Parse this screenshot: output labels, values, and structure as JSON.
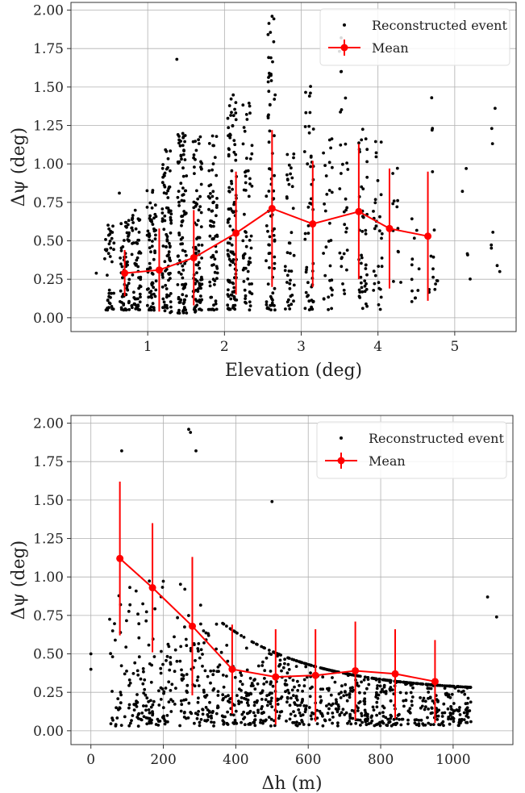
{
  "chart_data": [
    {
      "type": "scatter",
      "title": "",
      "xlabel": "Elevation (deg)",
      "ylabel": "Δψ (deg)",
      "xlim": [
        0.0,
        5.8
      ],
      "ylim": [
        -0.09,
        2.05
      ],
      "xticks": [
        1,
        2,
        3,
        4,
        5
      ],
      "yticks": [
        0.0,
        0.25,
        0.5,
        0.75,
        1.0,
        1.25,
        1.5,
        1.75,
        2.0
      ],
      "ytick_labels": [
        "0.00",
        "0.25",
        "0.50",
        "0.75",
        "1.00",
        "1.25",
        "1.50",
        "1.75",
        "2.00"
      ],
      "grid": true,
      "legend_position": "top-right",
      "colors": {
        "points": "#000000",
        "mean": "#ff0000"
      },
      "series": [
        {
          "name": "Reconstructed event",
          "kind": "scatter",
          "clusters": [
            {
              "x": 0.5,
              "y_min": 0.05,
              "y_max": 0.62,
              "n": 40
            },
            {
              "x": 0.7,
              "y_min": 0.05,
              "y_max": 0.65,
              "n": 60
            },
            {
              "x": 0.85,
              "y_min": 0.05,
              "y_max": 0.7,
              "n": 60
            },
            {
              "x": 1.05,
              "y_min": 0.03,
              "y_max": 0.85,
              "n": 70
            },
            {
              "x": 1.25,
              "y_min": 0.03,
              "y_max": 1.1,
              "n": 90
            },
            {
              "x": 1.45,
              "y_min": 0.03,
              "y_max": 1.2,
              "n": 100
            },
            {
              "x": 1.65,
              "y_min": 0.03,
              "y_max": 1.2,
              "n": 90
            },
            {
              "x": 1.85,
              "y_min": 0.05,
              "y_max": 1.2,
              "n": 70
            },
            {
              "x": 2.1,
              "y_min": 0.05,
              "y_max": 1.45,
              "n": 110
            },
            {
              "x": 2.3,
              "y_min": 0.05,
              "y_max": 1.45,
              "n": 60
            },
            {
              "x": 2.6,
              "y_min": 0.05,
              "y_max": 1.95,
              "n": 80
            },
            {
              "x": 2.85,
              "y_min": 0.05,
              "y_max": 1.2,
              "n": 40
            },
            {
              "x": 3.1,
              "y_min": 0.05,
              "y_max": 1.55,
              "n": 50
            },
            {
              "x": 3.35,
              "y_min": 0.05,
              "y_max": 1.3,
              "n": 30
            },
            {
              "x": 3.55,
              "y_min": 0.15,
              "y_max": 1.8,
              "n": 30
            },
            {
              "x": 3.8,
              "y_min": 0.05,
              "y_max": 1.3,
              "n": 45
            },
            {
              "x": 4.0,
              "y_min": 0.05,
              "y_max": 1.15,
              "n": 30
            },
            {
              "x": 4.25,
              "y_min": 0.2,
              "y_max": 1.0,
              "n": 12
            },
            {
              "x": 4.5,
              "y_min": 0.1,
              "y_max": 0.75,
              "n": 12
            },
            {
              "x": 4.72,
              "y_min": 0.12,
              "y_max": 1.45,
              "n": 14
            },
            {
              "x": 5.15,
              "y_min": 0.2,
              "y_max": 0.97,
              "n": 4
            },
            {
              "x": 5.47,
              "y_min": 0.3,
              "y_max": 1.43,
              "n": 6
            },
            {
              "x": 5.57,
              "y_min": 0.3,
              "y_max": 0.35,
              "n": 2
            }
          ],
          "extra_points": [
            [
              0.33,
              0.29
            ],
            [
              0.63,
              0.81
            ],
            [
              1.38,
              1.68
            ],
            [
              2.62,
              1.96
            ],
            [
              5.15,
              0.97
            ],
            [
              4.7,
              1.43
            ],
            [
              3.52,
              1.82
            ]
          ]
        },
        {
          "name": "Mean",
          "kind": "line-errorbar",
          "x": [
            0.7,
            1.15,
            1.6,
            2.15,
            2.62,
            3.15,
            3.75,
            4.15,
            4.65
          ],
          "y": [
            0.29,
            0.31,
            0.39,
            0.55,
            0.71,
            0.61,
            0.69,
            0.58,
            0.53
          ],
          "err": [
            0.15,
            0.27,
            0.31,
            0.4,
            0.51,
            0.41,
            0.44,
            0.39,
            0.42
          ]
        }
      ]
    },
    {
      "type": "scatter",
      "title": "",
      "xlabel": "Δh (m)",
      "ylabel": "Δψ (deg)",
      "xlim": [
        -55,
        1165
      ],
      "ylim": [
        -0.09,
        2.05
      ],
      "xticks": [
        0,
        200,
        400,
        600,
        800,
        1000
      ],
      "yticks": [
        0.0,
        0.25,
        0.5,
        0.75,
        1.0,
        1.25,
        1.5,
        1.75,
        2.0
      ],
      "ytick_labels": [
        "0.00",
        "0.25",
        "0.50",
        "0.75",
        "1.00",
        "1.25",
        "1.50",
        "1.75",
        "2.00"
      ],
      "grid": true,
      "legend_position": "top-right",
      "colors": {
        "points": "#000000",
        "mean": "#ff0000"
      },
      "series": [
        {
          "name": "Reconstructed event",
          "kind": "scatter",
          "cloud": {
            "x_min": 50,
            "x_max": 1050,
            "count": 1100,
            "y_decay": 0.3,
            "y_max": 1.45
          },
          "extra_points": [
            [
              0,
              0.5
            ],
            [
              0,
              0.4
            ],
            [
              85,
              1.82
            ],
            [
              270,
              1.96
            ],
            [
              275,
              1.94
            ],
            [
              290,
              1.82
            ],
            [
              500,
              1.49
            ],
            [
              1120,
              0.74
            ],
            [
              1095,
              0.87
            ]
          ]
        },
        {
          "name": "Mean",
          "kind": "line-errorbar",
          "x": [
            80,
            170,
            280,
            390,
            510,
            620,
            730,
            840,
            950
          ],
          "y": [
            1.12,
            0.93,
            0.68,
            0.4,
            0.35,
            0.36,
            0.39,
            0.37,
            0.32
          ],
          "err": [
            0.5,
            0.42,
            0.45,
            0.29,
            0.31,
            0.3,
            0.32,
            0.29,
            0.27
          ]
        }
      ]
    }
  ]
}
